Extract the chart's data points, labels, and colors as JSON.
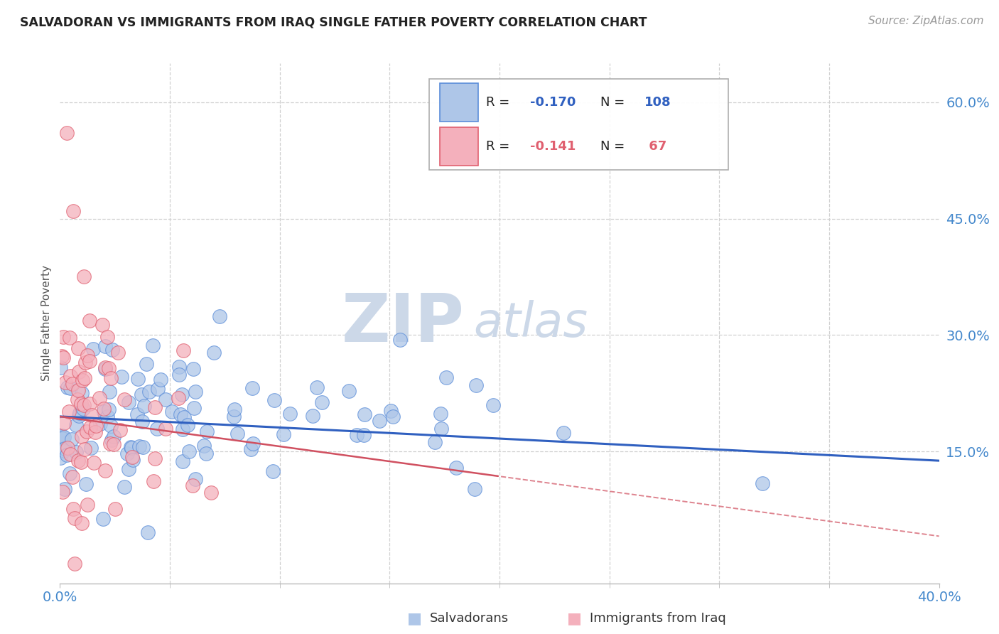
{
  "title": "SALVADORAN VS IMMIGRANTS FROM IRAQ SINGLE FATHER POVERTY CORRELATION CHART",
  "source": "Source: ZipAtlas.com",
  "ylabel": "Single Father Poverty",
  "xlim": [
    0.0,
    0.4
  ],
  "ylim": [
    -0.02,
    0.65
  ],
  "ytick_positions": [
    0.15,
    0.3,
    0.45,
    0.6
  ],
  "ytick_labels": [
    "15.0%",
    "30.0%",
    "45.0%",
    "60.0%"
  ],
  "grid_color": "#d0d0d0",
  "background_color": "#ffffff",
  "salvadorans_color": "#aec6e8",
  "salvadorans_edge": "#5b8dd9",
  "iraq_color": "#f4b0bc",
  "iraq_edge": "#e06070",
  "trend_salvadorans_color": "#3060c0",
  "trend_iraq_color": "#d05060",
  "watermark_color": "#ccd8e8",
  "title_color": "#222222",
  "axis_label_color": "#555555",
  "tick_label_color": "#4488cc",
  "source_color": "#999999",
  "legend_r1": "-0.170",
  "legend_n1": "108",
  "legend_r2": "-0.141",
  "legend_n2": " 67",
  "trend_sal_start": 0.195,
  "trend_sal_end": 0.138,
  "trend_iraq_start": 0.195,
  "trend_iraq_end": 0.06,
  "sal_seed": 12,
  "iraq_seed": 7
}
